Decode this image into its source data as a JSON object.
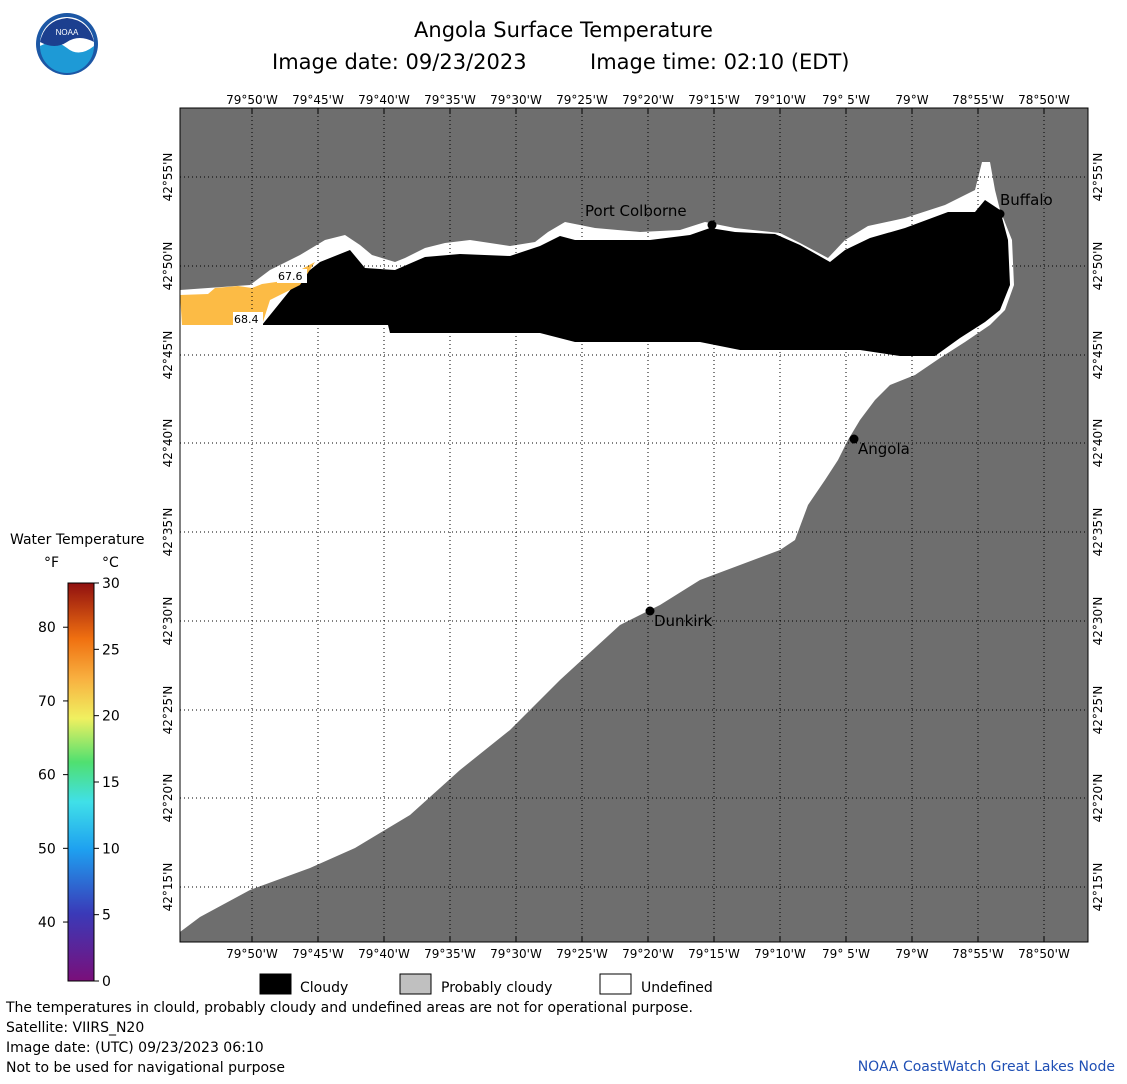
{
  "header": {
    "title": "Angola Surface Temperature",
    "image_date": "Image date: 09/23/2023",
    "image_time": "Image time: 02:10 (EDT)",
    "logo_text": "NOAA"
  },
  "map": {
    "lon_ticks": [
      "79°50'W",
      "79°45'W",
      "79°40'W",
      "79°35'W",
      "79°30'W",
      "79°25'W",
      "79°20'W",
      "79°15'W",
      "79°10'W",
      "79° 5'W",
      "79°W",
      "78°55'W",
      "78°50'W"
    ],
    "lat_ticks": [
      "42°55'N",
      "42°50'N",
      "42°45'N",
      "42°40'N",
      "42°35'N",
      "42°30'N",
      "42°25'N",
      "42°20'N",
      "42°15'N"
    ],
    "cities": [
      {
        "name": "Port Colborne"
      },
      {
        "name": "Buffalo"
      },
      {
        "name": "Angola"
      },
      {
        "name": "Dunkirk"
      }
    ],
    "readings": [
      {
        "value": "67.6",
        "unit": "°F"
      },
      {
        "value": "68.4",
        "unit": "°F"
      }
    ],
    "colors": {
      "land": "#6e6e6e",
      "cloud": "#000000",
      "undefined": "#ffffff",
      "warm_water": "#fcbb45",
      "grid": "#000000"
    }
  },
  "colorbar": {
    "title": "Water Temperature",
    "unit_f": "°F",
    "unit_c": "°C",
    "f_ticks": [
      "80",
      "70",
      "60",
      "50",
      "40"
    ],
    "c_ticks": [
      "30",
      "25",
      "20",
      "15",
      "10",
      "5",
      "0"
    ],
    "range_c": [
      0,
      30
    ]
  },
  "legend": {
    "cloudy": "Cloudy",
    "probably_cloudy": "Probably cloudy",
    "undefined": "Undefined"
  },
  "footer": {
    "disclaimer": "The temperatures in clould, probably cloudy and undefined areas are not for operational purpose.",
    "satellite": "Satellite: VIIRS_N20",
    "utc_date": "Image date: (UTC) 09/23/2023  06:10",
    "navigation": "Not to be used for navigational purpose",
    "credit": "NOAA CoastWatch Great Lakes Node"
  }
}
